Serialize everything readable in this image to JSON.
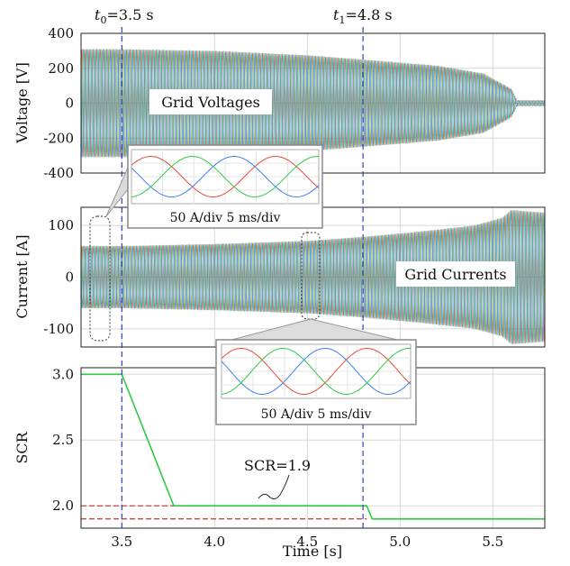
{
  "chart_data": [
    {
      "type": "line",
      "ylabel": "Voltage [V]",
      "ylim": [
        -400,
        400
      ],
      "yticks": [
        400,
        200,
        0,
        -200,
        -400
      ],
      "xlim": [
        3.28,
        5.78
      ],
      "annotation": "Grid Voltages",
      "series": [
        {
          "color": "#e74c3c",
          "description": "phase a"
        },
        {
          "color": "#2ecc40",
          "description": "phase b"
        },
        {
          "color": "#3b82f6",
          "description": "phase c"
        }
      ],
      "envelope": {
        "x": [
          3.28,
          3.5,
          4.0,
          4.5,
          4.8,
          5.2,
          5.45,
          5.6,
          5.63,
          5.78
        ],
        "amplitude": [
          310,
          310,
          300,
          275,
          250,
          215,
          170,
          80,
          15,
          15
        ]
      },
      "inset": {
        "label": "50 A/div 5 ms/div"
      },
      "grid": true
    },
    {
      "type": "line",
      "ylabel": "Current [A]",
      "ylim": [
        -135,
        135
      ],
      "yticks": [
        100,
        0,
        -100
      ],
      "xlim": [
        3.28,
        5.78
      ],
      "annotation": "Grid Currents",
      "envelope": {
        "x": [
          3.28,
          3.5,
          4.0,
          4.5,
          4.8,
          5.1,
          5.4,
          5.55,
          5.6,
          5.78
        ],
        "amplitude": [
          60,
          60,
          64,
          70,
          78,
          88,
          100,
          115,
          130,
          125
        ]
      },
      "inset": {
        "label": "50 A/div 5 ms/div"
      },
      "grid": true
    },
    {
      "type": "line",
      "xlabel": "Time [s]",
      "ylabel": "SCR",
      "ylim": [
        1.83,
        3.05
      ],
      "yticks": [
        3.0,
        2.5,
        2.0
      ],
      "xlim": [
        3.28,
        5.78
      ],
      "xticks": [
        3.5,
        4.0,
        4.5,
        5.0,
        5.5
      ],
      "series": [
        {
          "color": "#2ecc40",
          "x": [
            3.28,
            3.5,
            3.78,
            4.82,
            4.85,
            5.78
          ],
          "y": [
            3.0,
            3.0,
            2.0,
            2.0,
            1.9,
            1.9
          ]
        }
      ],
      "reference_lines": [
        {
          "y": 2.0,
          "color": "#c0392b",
          "style": "dashed"
        },
        {
          "y": 1.9,
          "color": "#c0392b",
          "style": "dashed"
        }
      ],
      "annotation": "SCR=1.9",
      "grid": true
    }
  ],
  "markers": {
    "t0": {
      "sym": "t",
      "sub": "0",
      "val": "=3.5 s",
      "x": 3.5
    },
    "t1": {
      "sym": "t",
      "sub": "1",
      "val": "=4.8 s",
      "x": 4.8
    }
  },
  "colors": {
    "phase_a": "#e74c3c",
    "phase_b": "#2ecc40",
    "phase_c": "#3b82f6",
    "marker": "#3040b0",
    "scr": "#2ecc40",
    "ref": "#c0392b"
  }
}
